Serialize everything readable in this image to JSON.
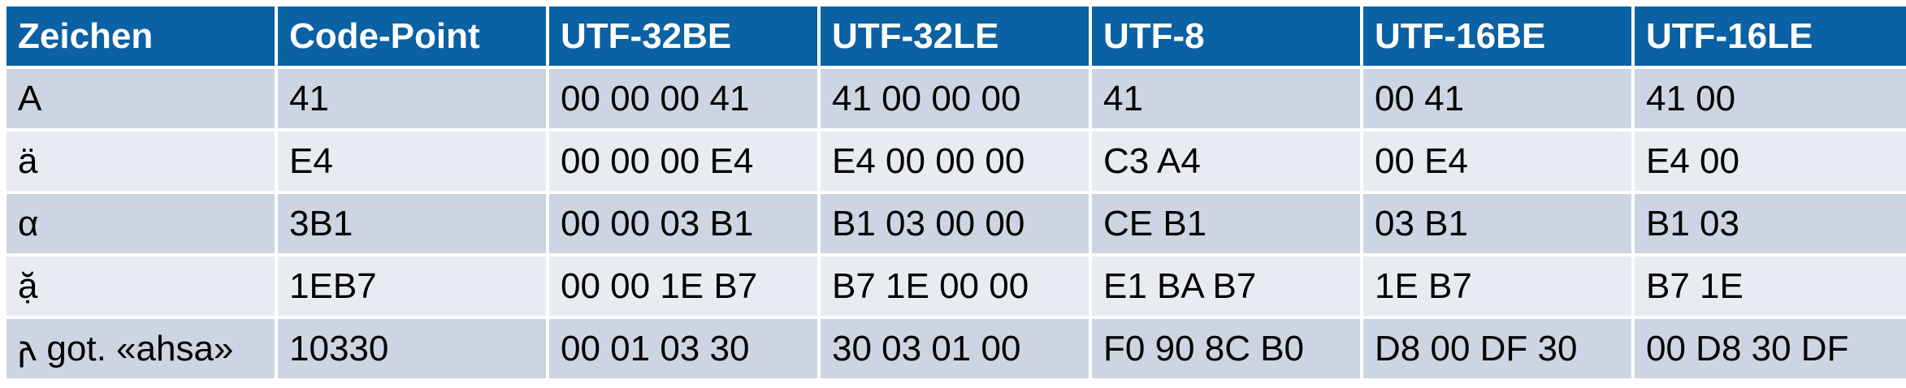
{
  "table": {
    "headers": [
      "Zeichen",
      "Code-Point",
      "UTF-32BE",
      "UTF-32LE",
      "UTF-8",
      "UTF-16BE",
      "UTF-16LE"
    ],
    "rows": [
      [
        "A",
        "41",
        "00 00 00 41",
        "41 00 00 00",
        "41",
        "00 41",
        "41 00"
      ],
      [
        "ä",
        "E4",
        "00 00 00 E4",
        "E4 00 00 00",
        "C3 A4",
        "00 E4",
        "E4 00"
      ],
      [
        "α",
        "3B1",
        "00 00 03 B1",
        "B1 03 00 00",
        "CE B1",
        "03 B1",
        "B1 03"
      ],
      [
        "ặ",
        "1EB7",
        "00 00 1E B7",
        "B7 1E 00 00",
        "E1 BA B7",
        "1E B7",
        "B7 1E"
      ],
      [
        "𐌰 got. «ahsa»",
        "10330",
        "00 01 03 30",
        "30 03 01 00",
        "F0 90 8C B0",
        "D8 00 DF 30",
        "00 D8 30 DF"
      ]
    ]
  },
  "colors": {
    "header_bg": "#0a61a3",
    "header_text": "#ffffff",
    "row_odd_bg": "#cdd5e2",
    "row_even_bg": "#e8ebf2"
  }
}
